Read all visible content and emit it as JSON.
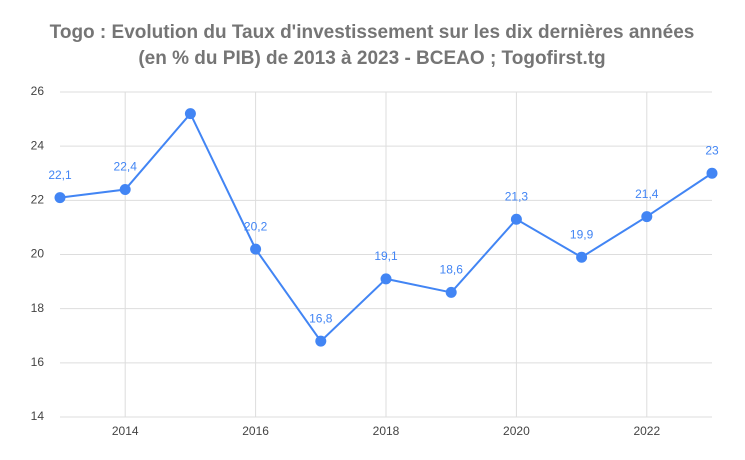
{
  "chart_data": {
    "type": "line",
    "title": [
      "Togo : Evolution du Taux d'investissement sur les dix dernières années",
      "(en % du PIB) de 2013 à 2023 - BCEAO ; Togofirst.tg"
    ],
    "x": [
      2013,
      2014,
      2015,
      2016,
      2017,
      2018,
      2019,
      2020,
      2021,
      2022,
      2023
    ],
    "values": [
      22.1,
      22.4,
      25.2,
      20.2,
      16.8,
      19.1,
      18.6,
      21.3,
      19.9,
      21.4,
      23
    ],
    "value_labels": [
      "22,1",
      "22,4",
      null,
      "20,2",
      "16,8",
      "19,1",
      "18,6",
      "21,3",
      "19,9",
      "21,4",
      "23"
    ],
    "color": "#4285f4",
    "xlim": [
      2013,
      2023
    ],
    "xticks": [
      2014,
      2016,
      2018,
      2020,
      2022
    ],
    "ylim": [
      14,
      26
    ],
    "yticks": [
      14,
      16,
      18,
      20,
      22,
      24,
      26
    ],
    "grid": true
  }
}
